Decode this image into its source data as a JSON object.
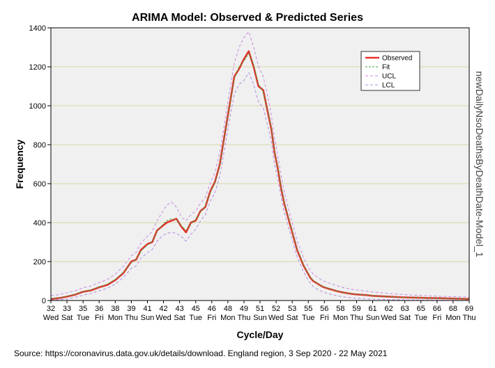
{
  "chart_data": {
    "type": "line",
    "title": "ARIMA Model: Observed & Predicted Series",
    "xlabel": "Cycle/Day",
    "ylabel": "Frequency",
    "right_label": "newDailyNsoDeathsByDeathDate-Model_1",
    "source": "Source: https://coronavirus.data.gov.uk/details/download. England region, 3 Sep 2020 - 22 May 2021",
    "ylim": [
      0,
      1400
    ],
    "y_ticks": [
      0,
      200,
      400,
      600,
      800,
      1000,
      1200,
      1400
    ],
    "x_range": [
      32,
      69
    ],
    "x_ticks": [
      {
        "x": 32,
        "cycle": "32",
        "day": "Wed"
      },
      {
        "x": 33,
        "cycle": "33",
        "day": "Sat"
      },
      {
        "x": 34,
        "cycle": "35",
        "day": "Tue"
      },
      {
        "x": 35,
        "cycle": "36",
        "day": "Fri"
      },
      {
        "x": 36,
        "cycle": "38",
        "day": "Mon"
      },
      {
        "x": 37,
        "cycle": "39",
        "day": "Thu"
      },
      {
        "x": 38,
        "cycle": "41",
        "day": "Sun"
      },
      {
        "x": 39,
        "cycle": "42",
        "day": "Wed"
      },
      {
        "x": 40,
        "cycle": "43",
        "day": "Sat"
      },
      {
        "x": 41,
        "cycle": "45",
        "day": "Tue"
      },
      {
        "x": 42,
        "cycle": "46",
        "day": "Fri"
      },
      {
        "x": 43,
        "cycle": "48",
        "day": "Mon"
      },
      {
        "x": 44,
        "cycle": "49",
        "day": "Thu"
      },
      {
        "x": 45,
        "cycle": "51",
        "day": "Sun"
      },
      {
        "x": 46,
        "cycle": "52",
        "day": "Wed"
      },
      {
        "x": 47,
        "cycle": "53",
        "day": "Sat"
      },
      {
        "x": 48,
        "cycle": "55",
        "day": "Tue"
      },
      {
        "x": 49,
        "cycle": "56",
        "day": "Fri"
      },
      {
        "x": 50,
        "cycle": "58",
        "day": "Mon"
      },
      {
        "x": 51,
        "cycle": "59",
        "day": "Thu"
      },
      {
        "x": 52,
        "cycle": "61",
        "day": "Sun"
      },
      {
        "x": 53,
        "cycle": "62",
        "day": "Wed"
      },
      {
        "x": 54,
        "cycle": "63",
        "day": "Sat"
      },
      {
        "x": 55,
        "cycle": "65",
        "day": "Tue"
      },
      {
        "x": 56,
        "cycle": "66",
        "day": "Fri"
      },
      {
        "x": 57,
        "cycle": "68",
        "day": "Mon"
      },
      {
        "x": 58,
        "cycle": "69",
        "day": "Thu"
      }
    ],
    "x_domain": [
      32,
      58
    ],
    "gridlines": [
      200,
      400,
      600,
      800,
      1000,
      1200
    ],
    "legend": [
      {
        "name": "Observed",
        "color": "#e8312f",
        "style": "solid"
      },
      {
        "name": "Fit",
        "color": "#3aa63a",
        "style": "dashed"
      },
      {
        "name": "UCL",
        "color": "#c48be0",
        "style": "dashed"
      },
      {
        "name": "LCL",
        "color": "#b38be0",
        "style": "dashed"
      }
    ],
    "legend_position": "top-right",
    "series": [
      {
        "name": "Observed",
        "x": [
          32.0,
          32.5,
          33.0,
          33.5,
          34.0,
          34.5,
          35.0,
          35.5,
          36.0,
          36.5,
          37.0,
          37.3,
          37.6,
          38.0,
          38.3,
          38.6,
          38.9,
          39.2,
          39.5,
          39.8,
          40.1,
          40.4,
          40.7,
          41.0,
          41.3,
          41.6,
          41.9,
          42.2,
          42.5,
          42.8,
          43.1,
          43.4,
          43.7,
          44.0,
          44.3,
          44.6,
          44.9,
          45.2,
          45.5,
          45.7,
          45.9,
          46.1,
          46.3,
          46.5,
          46.7,
          46.9,
          47.1,
          47.3,
          47.5,
          47.7,
          47.9,
          48.1,
          48.3,
          48.6,
          48.9,
          49.2,
          49.5,
          49.8,
          50.1,
          50.4,
          50.8,
          51.2,
          51.6,
          52.0,
          52.5,
          53.0,
          53.5,
          54.0,
          54.5,
          55.0,
          55.5,
          56.0,
          56.5,
          57.0,
          57.5,
          58.0
        ],
        "values": [
          8,
          12,
          20,
          30,
          45,
          52,
          68,
          80,
          105,
          140,
          200,
          210,
          260,
          290,
          300,
          360,
          380,
          400,
          410,
          420,
          380,
          350,
          400,
          410,
          460,
          480,
          560,
          610,
          700,
          850,
          1000,
          1150,
          1190,
          1240,
          1280,
          1200,
          1100,
          1080,
          960,
          880,
          760,
          680,
          580,
          500,
          440,
          380,
          320,
          260,
          220,
          180,
          150,
          120,
          100,
          85,
          70,
          62,
          55,
          48,
          42,
          38,
          33,
          30,
          28,
          24,
          22,
          20,
          18,
          16,
          15,
          14,
          13,
          12,
          11,
          10,
          9,
          8
        ]
      },
      {
        "name": "Fit",
        "x": [
          32.0,
          32.5,
          33.0,
          33.5,
          34.0,
          34.5,
          35.0,
          35.5,
          36.0,
          36.5,
          37.0,
          37.3,
          37.6,
          38.0,
          38.3,
          38.6,
          38.9,
          39.2,
          39.5,
          39.8,
          40.1,
          40.4,
          40.7,
          41.0,
          41.3,
          41.6,
          41.9,
          42.2,
          42.5,
          42.8,
          43.1,
          43.4,
          43.7,
          44.0,
          44.3,
          44.6,
          44.9,
          45.2,
          45.5,
          45.7,
          45.9,
          46.1,
          46.3,
          46.5,
          46.7,
          46.9,
          47.1,
          47.3,
          47.5,
          47.7,
          47.9,
          48.1,
          48.3,
          48.6,
          48.9,
          49.2,
          49.5,
          49.8,
          50.1,
          50.4,
          50.8,
          51.2,
          51.6,
          52.0,
          52.5,
          53.0,
          53.5,
          54.0,
          54.5,
          55.0,
          55.5,
          56.0,
          56.5,
          57.0,
          57.5,
          58.0
        ],
        "values": [
          10,
          14,
          22,
          32,
          46,
          55,
          70,
          84,
          108,
          145,
          195,
          212,
          255,
          285,
          305,
          355,
          385,
          410,
          420,
          415,
          385,
          360,
          395,
          415,
          455,
          485,
          555,
          605,
          695,
          845,
          995,
          1140,
          1200,
          1230,
          1270,
          1210,
          1110,
          1070,
          965,
          885,
          765,
          685,
          590,
          505,
          445,
          385,
          325,
          265,
          225,
          185,
          152,
          122,
          102,
          86,
          72,
          63,
          56,
          49,
          43,
          38,
          34,
          31,
          28,
          25,
          22,
          20,
          18,
          16,
          15,
          14,
          13,
          12,
          11,
          10,
          9,
          8
        ]
      },
      {
        "name": "UCL",
        "x": [
          32.0,
          32.5,
          33.0,
          33.5,
          34.0,
          34.5,
          35.0,
          35.5,
          36.0,
          36.5,
          37.0,
          37.3,
          37.6,
          38.0,
          38.3,
          38.6,
          38.9,
          39.2,
          39.5,
          39.8,
          40.1,
          40.4,
          40.7,
          41.0,
          41.3,
          41.6,
          41.9,
          42.2,
          42.5,
          42.8,
          43.1,
          43.4,
          43.7,
          44.0,
          44.3,
          44.6,
          44.9,
          45.2,
          45.5,
          45.7,
          45.9,
          46.1,
          46.3,
          46.5,
          46.7,
          46.9,
          47.1,
          47.3,
          47.5,
          47.7,
          47.9,
          48.1,
          48.3,
          48.6,
          48.9,
          49.2,
          49.5,
          49.8,
          50.1,
          50.4,
          50.8,
          51.2,
          51.6,
          52.0,
          52.5,
          53.0,
          53.5,
          54.0,
          54.5,
          55.0,
          55.5,
          56.0,
          56.5,
          57.0,
          57.5,
          58.0
        ],
        "values": [
          25,
          30,
          40,
          50,
          65,
          75,
          92,
          108,
          135,
          175,
          230,
          248,
          295,
          330,
          355,
          410,
          450,
          490,
          505,
          480,
          430,
          410,
          440,
          460,
          500,
          530,
          600,
          660,
          760,
          910,
          1070,
          1220,
          1300,
          1350,
          1380,
          1300,
          1200,
          1150,
          1040,
          950,
          830,
          745,
          645,
          560,
          495,
          430,
          370,
          305,
          265,
          220,
          188,
          158,
          136,
          118,
          102,
          92,
          84,
          76,
          68,
          62,
          56,
          52,
          48,
          44,
          40,
          36,
          33,
          30,
          28,
          26,
          24,
          22,
          21,
          20,
          19,
          18
        ]
      },
      {
        "name": "LCL",
        "x": [
          32.0,
          32.5,
          33.0,
          33.5,
          34.0,
          34.5,
          35.0,
          35.5,
          36.0,
          36.5,
          37.0,
          37.3,
          37.6,
          38.0,
          38.3,
          38.6,
          38.9,
          39.2,
          39.5,
          39.8,
          40.1,
          40.4,
          40.7,
          41.0,
          41.3,
          41.6,
          41.9,
          42.2,
          42.5,
          42.8,
          43.1,
          43.4,
          43.7,
          44.0,
          44.3,
          44.6,
          44.9,
          45.2,
          45.5,
          45.7,
          45.9,
          46.1,
          46.3,
          46.5,
          46.7,
          46.9,
          47.1,
          47.3,
          47.5,
          47.7,
          47.9,
          48.1,
          48.3,
          48.6,
          48.9,
          49.2,
          49.5,
          49.8,
          50.1,
          50.4,
          50.8,
          51.2,
          51.6,
          52.0,
          52.5,
          53.0,
          53.5,
          54.0,
          54.5,
          55.0,
          55.5,
          56.0,
          56.5,
          57.0,
          57.5,
          58.0
        ],
        "values": [
          2,
          4,
          8,
          16,
          28,
          36,
          50,
          62,
          84,
          118,
          165,
          178,
          218,
          245,
          262,
          305,
          330,
          345,
          350,
          345,
          330,
          305,
          340,
          365,
          410,
          440,
          510,
          555,
          640,
          780,
          930,
          1060,
          1110,
          1130,
          1170,
          1110,
          1020,
          990,
          890,
          815,
          700,
          625,
          535,
          455,
          395,
          340,
          280,
          225,
          185,
          150,
          118,
          92,
          72,
          56,
          44,
          36,
          30,
          24,
          20,
          16,
          13,
          11,
          9,
          7,
          6,
          5,
          4,
          3,
          3,
          2,
          2,
          2,
          1,
          1,
          1,
          1
        ]
      }
    ]
  }
}
